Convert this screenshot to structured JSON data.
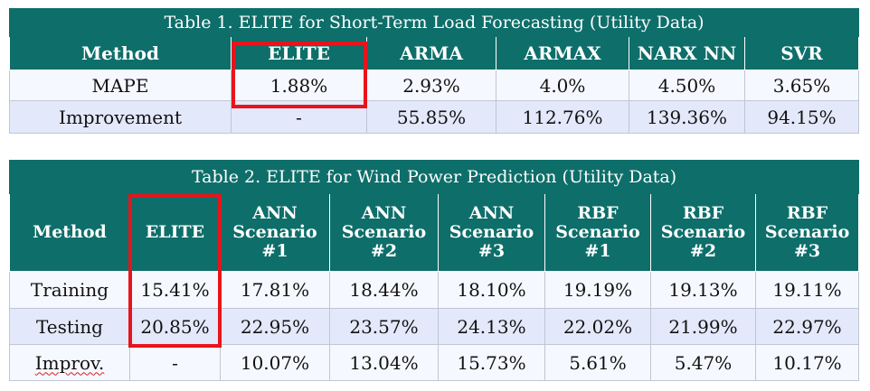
{
  "table1": {
    "caption": "Table 1. ELITE for Short-Term Load Forecasting (Utility Data)",
    "headers": [
      "Method",
      "ELITE",
      "ARMA",
      "ARMAX",
      "NARX NN",
      "SVR"
    ],
    "rows": [
      [
        "MAPE",
        "1.88%",
        "2.93%",
        "4.0%",
        "4.50%",
        "3.65%"
      ],
      [
        "Improvement",
        "-",
        "55.85%",
        "112.76%",
        "139.36%",
        "94.15%"
      ]
    ]
  },
  "table2": {
    "caption": "Table 2. ELITE for Wind Power Prediction (Utility Data)",
    "headers": [
      "Method",
      "ELITE",
      "ANN Scenario #1",
      "ANN Scenario #2",
      "ANN Scenario #3",
      "RBF Scenario #1",
      "RBF Scenario #2",
      "RBF Scenario #3"
    ],
    "header_lines": [
      [
        "Method"
      ],
      [
        "ELITE"
      ],
      [
        "ANN",
        "Scenario",
        "#1"
      ],
      [
        "ANN",
        "Scenario",
        "#2"
      ],
      [
        "ANN",
        "Scenario",
        "#3"
      ],
      [
        "RBF",
        "Scenario",
        "#1"
      ],
      [
        "RBF",
        "Scenario",
        "#2"
      ],
      [
        "RBF",
        "Scenario",
        "#3"
      ]
    ],
    "rows": [
      [
        "Training",
        "15.41%",
        "17.81%",
        "18.44%",
        "18.10%",
        "19.19%",
        "19.13%",
        "19.11%"
      ],
      [
        "Testing",
        "20.85%",
        "22.95%",
        "23.57%",
        "24.13%",
        "22.02%",
        "21.99%",
        "22.97%"
      ],
      [
        "Improv.",
        "-",
        "10.07%",
        "13.04%",
        "15.73%",
        "5.61%",
        "5.47%",
        "10.17%"
      ]
    ]
  },
  "colors": {
    "header_bg": "#0e6e6a",
    "row_light": "#f6f8ff",
    "row_dark": "#e3e8fa",
    "highlight_box": "#e8141c"
  }
}
